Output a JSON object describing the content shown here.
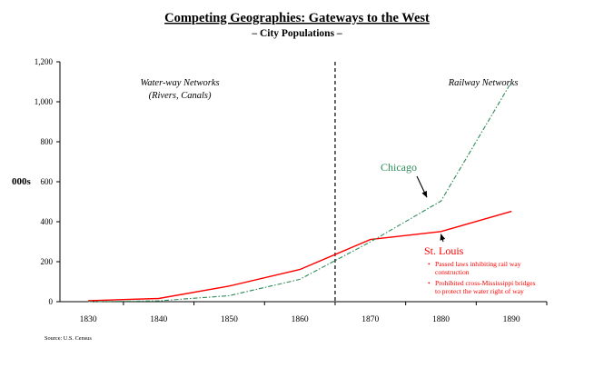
{
  "chart_data": {
    "type": "line",
    "title": "Competing Geographies:  Gateways to the West",
    "subtitle": "– City Populations –",
    "ylabel": "000s",
    "xlabel": "",
    "x": [
      1830,
      1840,
      1850,
      1860,
      1870,
      1880,
      1890
    ],
    "x_tick_labels": [
      "1830",
      "1840",
      "1850",
      "1860",
      "1870",
      "1880",
      "1890"
    ],
    "y_tick_values": [
      0,
      200,
      400,
      600,
      800,
      1000,
      1200
    ],
    "y_tick_labels": [
      "0",
      "200",
      "400",
      "600",
      "800",
      "1,000",
      "1,200"
    ],
    "ylim": [
      0,
      1200
    ],
    "xlim": [
      1826,
      1895
    ],
    "grid": false,
    "legend": "none",
    "series": [
      {
        "name": "St. Louis",
        "color": "#ff0000",
        "line_style": "solid",
        "values": [
          5,
          16,
          78,
          161,
          311,
          351,
          452
        ]
      },
      {
        "name": "Chicago",
        "color": "#2e8b57",
        "line_style": "dash-dot",
        "values": [
          0,
          4,
          30,
          112,
          299,
          503,
          1100
        ]
      }
    ],
    "divider": {
      "x": 1865,
      "style": "dashed"
    },
    "regions": [
      {
        "lines": [
          "Water-way Networks",
          "(Rivers, Canals)"
        ],
        "x": 1843
      },
      {
        "lines": [
          "Railway Networks"
        ],
        "x": 1886
      }
    ],
    "annotations": {
      "chicago": {
        "label": "Chicago",
        "color": "#2e8b57",
        "arrow_to": {
          "x": 1878,
          "y": 495
        }
      },
      "stlouis": {
        "label": "St. Louis",
        "color": "#ff0000",
        "bullets": [
          [
            "Passed laws inhibiting rail way",
            "construction"
          ],
          [
            "Prohibited cross-Mississippi bridges",
            "to protect the water right of way"
          ]
        ],
        "arrow_to": {
          "x": 1880,
          "y": 356
        }
      }
    },
    "source": "Source:  U.S. Census"
  }
}
